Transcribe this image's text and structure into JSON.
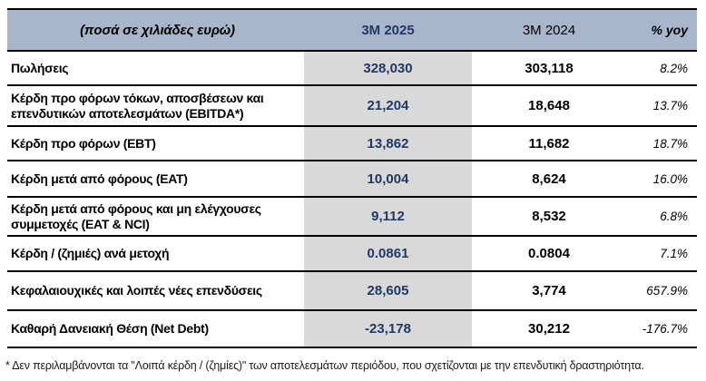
{
  "colors": {
    "navy": "#1F3864",
    "header_bg": "#A8B6CB",
    "highlight_col": "#D9D9D9",
    "grid_line": "#000000"
  },
  "table": {
    "unit_label": "(ποσά σε χιλιάδες ευρώ)",
    "columns": [
      "3M 2025",
      "3M 2024",
      "% yoy"
    ],
    "rows": [
      {
        "label": "Πωλήσεις",
        "v2025": "328,030",
        "v2024": "303,118",
        "yoy": "8.2%"
      },
      {
        "label": "Κέρδη προ φόρων τόκων, αποσβέσεων και επενδυτικών αποτελεσμάτων (EBITDA*)",
        "v2025": "21,204",
        "v2024": "18,648",
        "yoy": "13.7%"
      },
      {
        "label": "Κέρδη προ φόρων (EBT)",
        "v2025": "13,862",
        "v2024": "11,682",
        "yoy": "18.7%"
      },
      {
        "label": "Κέρδη μετά από φόρους (EAT)",
        "v2025": "10,004",
        "v2024": "8,624",
        "yoy": "16.0%"
      },
      {
        "label": "Κέρδη μετά από φόρους και μη ελέγχουσες συμμετοχές (EAT & NCI)",
        "v2025": "9,112",
        "v2024": "8,532",
        "yoy": "6.8%"
      },
      {
        "label": "Κέρδη / (ζημιές) ανά μετοχή",
        "v2025": "0.0861",
        "v2024": "0.0804",
        "yoy": "7.1%"
      },
      {
        "label": "Κεφαλαιουχικές και λοιπές νέες επενδύσεις",
        "v2025": "28,605",
        "v2024": "3,774",
        "yoy": "657.9%"
      },
      {
        "label": "Καθαρή Δανειακή Θέση (Net Debt)",
        "v2025": "-23,178",
        "v2024": "30,212",
        "yoy": "-176.7%"
      }
    ],
    "footnote": "* Δεν περιλαμβάνονται τα \"Λοιπά κέρδη / (ζημίες)\" των αποτελεσμάτων περιόδου, που σχετίζονται με την επενδυτική δραστηριότητα."
  }
}
